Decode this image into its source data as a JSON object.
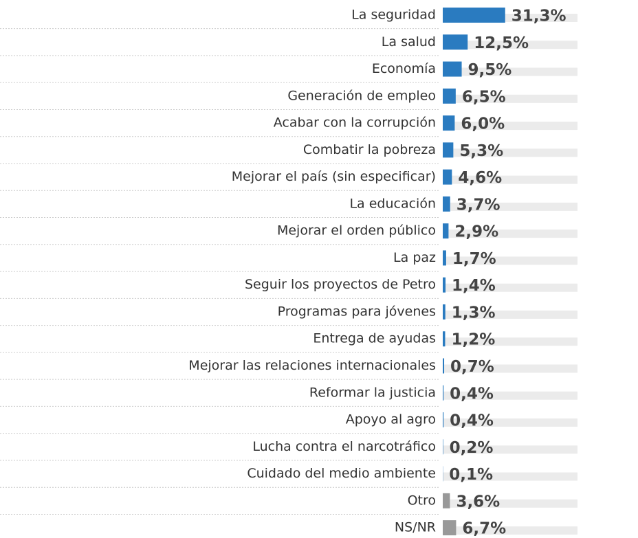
{
  "chart_data": {
    "type": "bar",
    "categories": [
      "La seguridad",
      "La salud",
      "Economía",
      "Generación de empleo",
      "Acabar con la corrupción",
      "Combatir la pobreza",
      "Mejorar el país (sin especificar)",
      "La educación",
      "Mejorar el orden público",
      "La paz",
      "Seguir los proyectos de Petro",
      "Programas para jóvenes",
      "Entrega de ayudas",
      "Mejorar las relaciones internacionales",
      "Reformar la justicia",
      "Apoyo al agro",
      "Lucha contra el narcotráfico",
      "Cuidado del medio ambiente",
      "Otro",
      "NS/NR"
    ],
    "values": [
      31.3,
      12.5,
      9.5,
      6.5,
      6.0,
      5.3,
      4.6,
      3.7,
      2.9,
      1.7,
      1.4,
      1.3,
      1.2,
      0.7,
      0.4,
      0.4,
      0.2,
      0.1,
      3.6,
      6.7
    ],
    "value_labels": [
      "31,3%",
      "12,5%",
      "9,5%",
      "6,5%",
      "6,0%",
      "5,3%",
      "4,6%",
      "3,7%",
      "2,9%",
      "1,7%",
      "1,4%",
      "1,3%",
      "1,2%",
      "0,7%",
      "0,4%",
      "0,4%",
      "0,2%",
      "0,1%",
      "3,6%",
      "6,7%"
    ],
    "colors": [
      "#2a7bc0",
      "#2a7bc0",
      "#2a7bc0",
      "#2a7bc0",
      "#2a7bc0",
      "#2a7bc0",
      "#2a7bc0",
      "#2a7bc0",
      "#2a7bc0",
      "#2a7bc0",
      "#2a7bc0",
      "#2a7bc0",
      "#2a7bc0",
      "#2a7bc0",
      "#2a7bc0",
      "#2a7bc0",
      "#2a7bc0",
      "#2a7bc0",
      "#999999",
      "#999999"
    ]
  }
}
